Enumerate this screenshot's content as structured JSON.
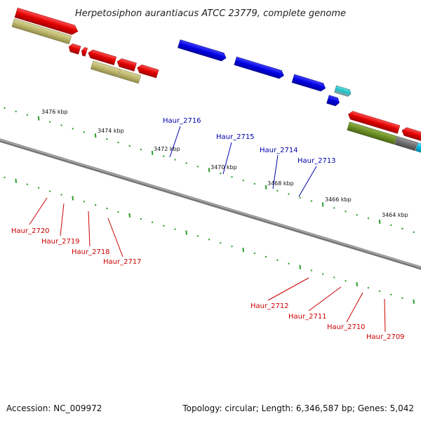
{
  "title": "Herpetosiphon aurantiacus ATCC 23779, complete genome",
  "accession": "Accession: NC_009972",
  "summary": "Topology: circular; Length: 6,346,587 bp; Genes: 5,042",
  "colors": {
    "background": "#ffffff",
    "backbone": "#808080",
    "tick_dot": "#2a9d2a",
    "forward_label": "#0000aa",
    "reverse_label": "#cc0000"
  },
  "ticks": [
    {
      "label": "3476 kbp"
    },
    {
      "label": "3474 kbp"
    },
    {
      "label": "3472 kbp"
    },
    {
      "label": "3470 kbp"
    },
    {
      "label": "3468 kbp"
    },
    {
      "label": "3466 kbp"
    },
    {
      "label": "3464 kbp"
    }
  ],
  "genes": [
    {
      "label": "Haur_2720",
      "strand": "reverse",
      "color": "#e00000"
    },
    {
      "label": "Haur_2719",
      "strand": "reverse",
      "color": "#e00000"
    },
    {
      "label": "Haur_2718",
      "strand": "reverse",
      "color": "#e00000"
    },
    {
      "label": "Haur_2717",
      "strand": "reverse",
      "color": "#e00000"
    },
    {
      "label": "Haur_2716",
      "strand": "forward",
      "color": "#0000e0"
    },
    {
      "label": "Haur_2715",
      "strand": "forward",
      "color": "#0000e0"
    },
    {
      "label": "Haur_2714",
      "strand": "forward",
      "color": "#0000e0"
    },
    {
      "label": "Haur_2713",
      "strand": "forward",
      "color": "#0000e0"
    },
    {
      "label": "Haur_2712",
      "strand": "reverse",
      "color": "#6b8e23"
    },
    {
      "label": "Haur_2711",
      "strand": "reverse",
      "color": "#6e6e6e"
    },
    {
      "label": "Haur_2710",
      "strand": "reverse",
      "color": "#00b8e6"
    },
    {
      "label": "Haur_2709",
      "strand": "reverse",
      "color": "#e6007e"
    }
  ]
}
